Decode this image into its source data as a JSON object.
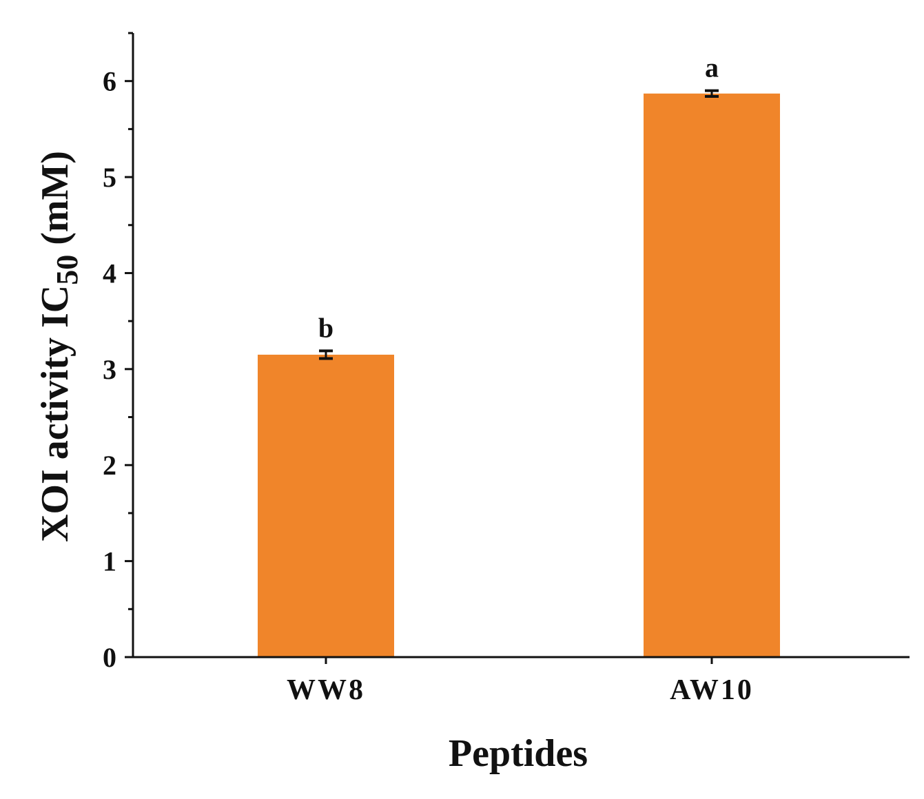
{
  "chart_data": {
    "type": "bar",
    "categories": [
      "WW8",
      "AW10"
    ],
    "values": [
      3.15,
      5.87
    ],
    "errors": [
      0.04,
      0.03
    ],
    "significance": [
      "b",
      "a"
    ],
    "xlabel": "Peptides",
    "ylabel_main": "XOI activity IC",
    "ylabel_sub": "50",
    "ylabel_unit": " (mM)",
    "ylim": [
      0,
      6.5
    ],
    "yticks": [
      0,
      1,
      2,
      3,
      4,
      5,
      6
    ],
    "grid": false,
    "bar_color": "#F0852A",
    "axis_color": "#111111"
  }
}
